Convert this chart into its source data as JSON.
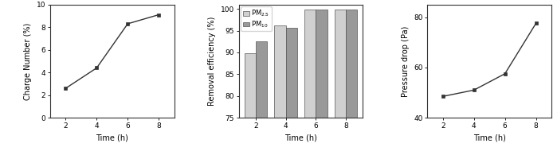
{
  "plot1": {
    "x": [
      2,
      4,
      6,
      8
    ],
    "y": [
      2.6,
      4.4,
      8.3,
      9.1
    ],
    "xlabel": "Time (h)",
    "ylabel": "Charge Number (%)",
    "xlim": [
      1,
      9
    ],
    "ylim": [
      0,
      10
    ],
    "xticks": [
      2,
      4,
      6,
      8
    ],
    "yticks": [
      0,
      2,
      4,
      6,
      8,
      10
    ]
  },
  "plot2": {
    "categories": [
      2,
      4,
      6,
      8
    ],
    "pm25": [
      89.8,
      96.2,
      99.8,
      99.8
    ],
    "pm10": [
      92.5,
      95.7,
      99.8,
      99.8
    ],
    "xlabel": "Time (h)",
    "ylabel": "Removal efficiency (%)",
    "ylim": [
      75,
      101
    ],
    "yticks": [
      75,
      80,
      85,
      90,
      95,
      100
    ],
    "color_pm25": "#d0d0d0",
    "color_pm10": "#999999",
    "legend_pm25": "PM$_{2.5}$",
    "legend_pm10": "PM$_{10}$",
    "bar_width": 0.38
  },
  "plot3": {
    "x": [
      2,
      4,
      6,
      8
    ],
    "y": [
      48.5,
      51.0,
      57.5,
      77.5
    ],
    "xlabel": "Time (h)",
    "ylabel": "Pressure drop (Pa)",
    "xlim": [
      1,
      9
    ],
    "ylim": [
      40,
      85
    ],
    "xticks": [
      2,
      4,
      6,
      8
    ],
    "yticks": [
      40,
      60,
      80
    ]
  },
  "line_color": "#333333",
  "marker": "s",
  "marker_size": 3.5,
  "fontsize_label": 7,
  "fontsize_tick": 6.5,
  "fontsize_legend": 6
}
